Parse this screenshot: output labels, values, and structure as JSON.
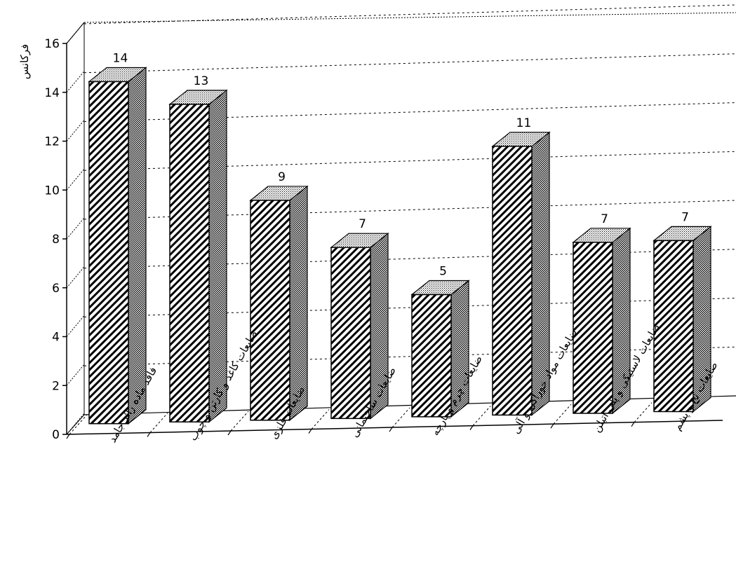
{
  "chart_data": {
    "type": "bar",
    "ylabel": "فرکانس",
    "xlabel": "",
    "ylim": [
      0,
      16
    ],
    "yticks": [
      0,
      2,
      4,
      6,
      8,
      10,
      12,
      14,
      16
    ],
    "grid": true,
    "style": "3d-hatched",
    "categories": [
      "فاقد ماده زائد جامد",
      "ضایعات کاغذ و کارتن و چوب",
      "ضایعات فلزی",
      "ضایعات ساختمانی",
      "ضایعات چرم و پارچه",
      "ضایعات مواد خوراکی و آلی",
      "ضایعات لاستیکی و پلی اتیلن",
      "ضایعات نخ و پشم"
    ],
    "values": [
      14,
      13,
      9,
      7,
      5,
      11,
      7,
      7
    ],
    "data_labels": [
      "14",
      "13",
      "9",
      "7",
      "5",
      "11",
      "7",
      "7"
    ]
  }
}
